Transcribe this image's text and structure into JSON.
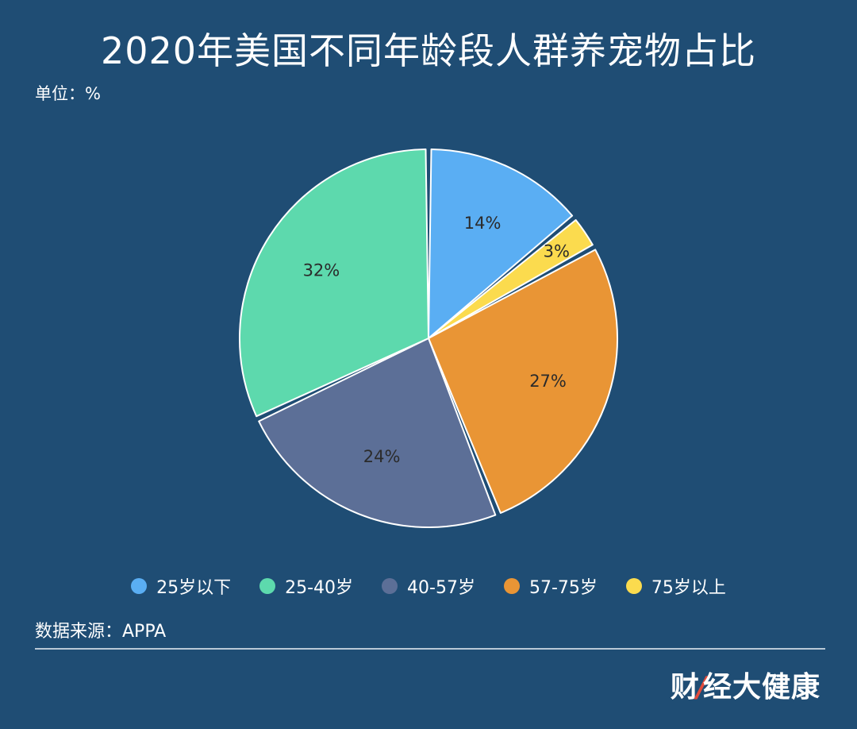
{
  "title": "2020年美国不同年龄段人群养宠物占比",
  "unit": "单位：%",
  "source": "数据来源：APPA",
  "brand": {
    "before": "财",
    "slash": "/",
    "after": "经大健康"
  },
  "chart_data": {
    "type": "pie",
    "categories": [
      "25岁以下",
      "25-40岁",
      "40-57岁",
      "57-75岁",
      "75岁以上"
    ],
    "values": [
      14,
      32,
      24,
      27,
      3
    ],
    "labels": [
      "14%",
      "32%",
      "24%",
      "27%",
      "3%"
    ],
    "colors": [
      "#5aaef3",
      "#5dd9ad",
      "#5c6f97",
      "#e99535",
      "#fbdb4e"
    ],
    "legend_position": "bottom",
    "slice_order": [
      "25岁以下",
      "75岁以上",
      "57-75岁",
      "40-57岁",
      "25-40岁"
    ]
  }
}
